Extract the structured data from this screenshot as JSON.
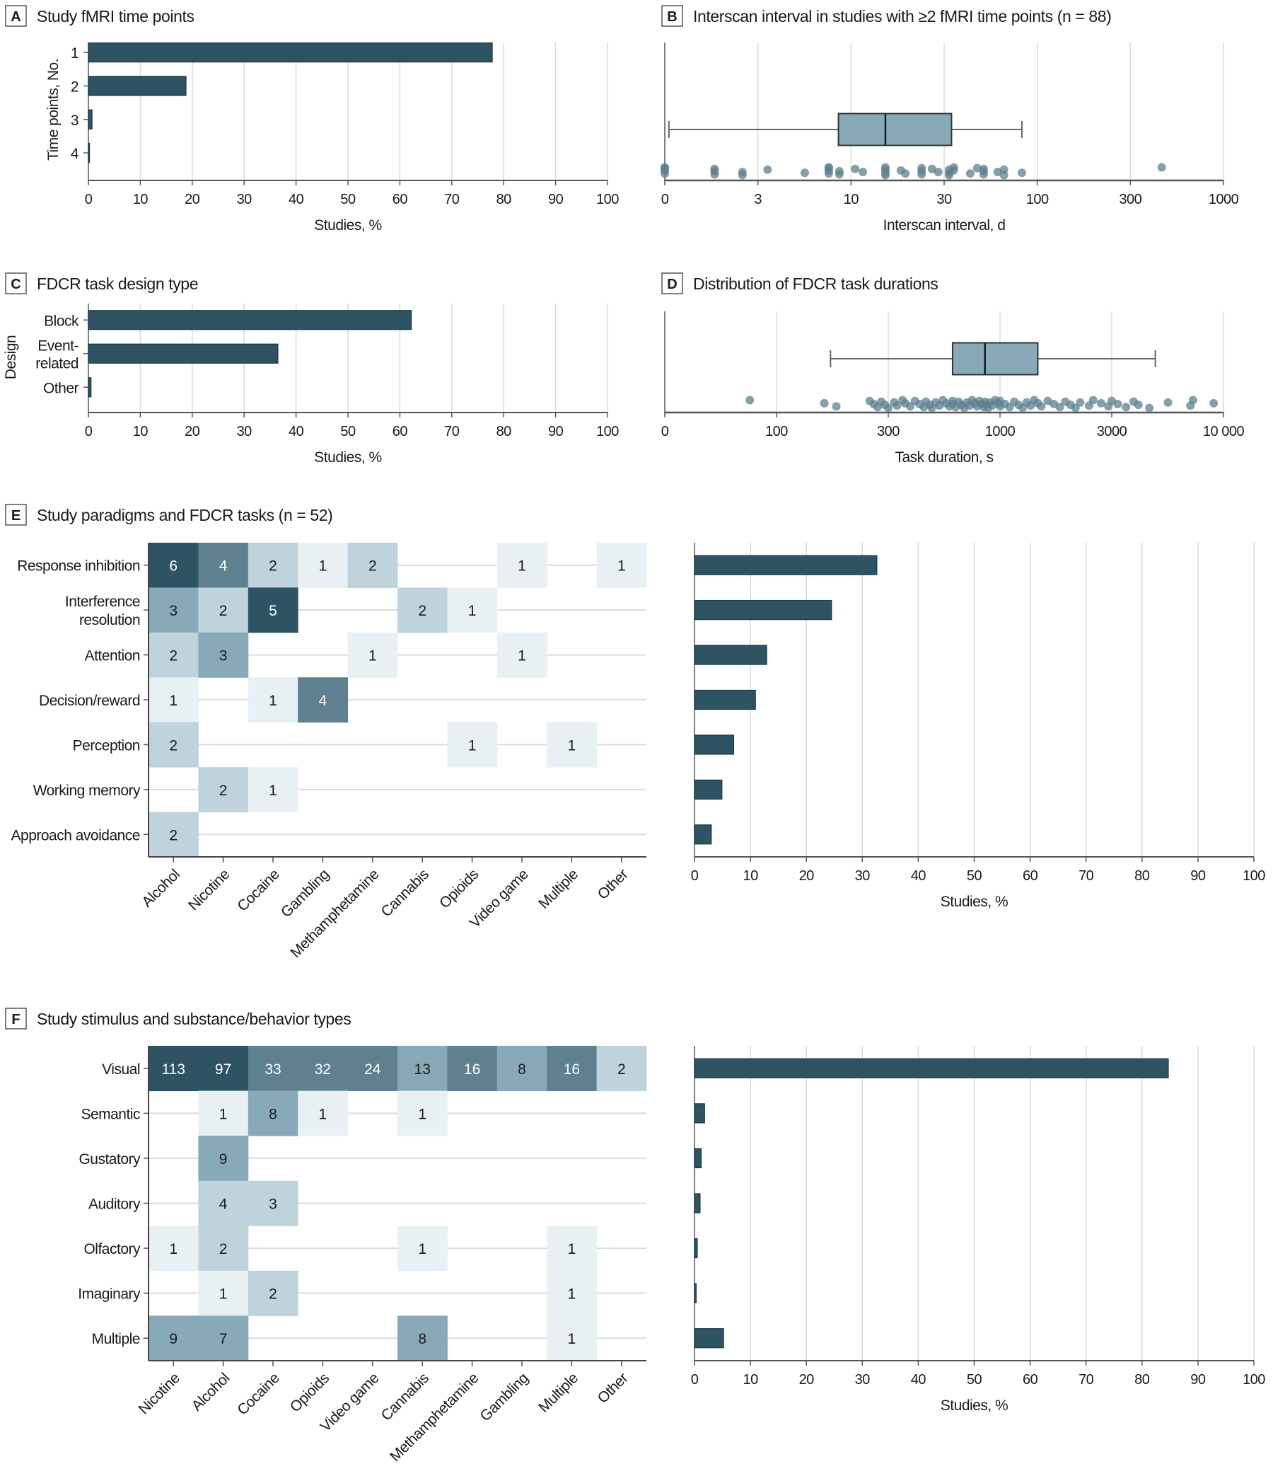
{
  "palette": {
    "bar": "#2e5463",
    "dark": "#2e5463",
    "mid": "#5e808f",
    "midlight": "#88aab8",
    "light": "#bed3dc",
    "lightest": "#e8f0f3",
    "grid": "#d9d9d9",
    "point": "#5e808f",
    "box": "#88aab8"
  },
  "chart_data": [
    {
      "id": "A",
      "type": "bar",
      "letter": "A",
      "title": "Study fMRI time points",
      "ylabel": "Time points, No.",
      "xlabel": "Studies, %",
      "categories": [
        [
          "1"
        ],
        [
          "2"
        ],
        [
          "3"
        ],
        [
          "4"
        ]
      ],
      "values": [
        77.8,
        18.8,
        0.7,
        0.2
      ],
      "xlim": [
        0,
        100
      ],
      "xticks": [
        "0",
        "10",
        "20",
        "30",
        "40",
        "50",
        "60",
        "70",
        "80",
        "90",
        "100"
      ],
      "grid": true
    },
    {
      "id": "B",
      "type": "box",
      "letter": "B",
      "title": "Interscan interval in studies with ≥2 fMRI time points (n = 88)",
      "xlabel": "Interscan interval, d",
      "scale": "log",
      "tick_values": [
        1,
        3,
        10,
        30,
        100,
        300,
        1000
      ],
      "xticks": [
        "0",
        "3",
        "10",
        "30",
        "100",
        "300",
        "1000"
      ],
      "box": {
        "min": 1.05,
        "q1": 8.5,
        "median": 15,
        "q3": 33,
        "max": 82
      },
      "points": [
        1,
        1,
        1,
        1,
        1.8,
        1.8,
        1.8,
        2.5,
        2.5,
        3.4,
        5.5,
        7.5,
        7.5,
        7.5,
        7.5,
        8.6,
        8.6,
        10.5,
        11.5,
        15,
        15,
        15,
        15,
        18,
        19,
        23,
        23,
        23,
        26,
        28,
        32,
        32,
        32,
        34,
        34,
        42,
        46,
        50,
        50,
        50,
        60,
        65,
        65,
        82,
        450
      ]
    },
    {
      "id": "C",
      "type": "bar",
      "letter": "C",
      "title": "FDCR task design type",
      "ylabel": "Design",
      "xlabel": "Studies, %",
      "categories": [
        [
          "Block"
        ],
        [
          "Event-",
          "related"
        ],
        [
          "Other"
        ]
      ],
      "values": [
        62.2,
        36.5,
        0.5
      ],
      "xlim": [
        0,
        100
      ],
      "xticks": [
        "0",
        "10",
        "20",
        "30",
        "40",
        "50",
        "60",
        "70",
        "80",
        "90",
        "100"
      ],
      "grid": true
    },
    {
      "id": "D",
      "type": "box",
      "letter": "D",
      "title": "Distribution of FDCR task durations",
      "xlabel": "Task duration, s",
      "scale": "log",
      "tick_values": [
        30,
        100,
        300,
        1000,
        3000,
        10000
      ],
      "xticks": [
        "0",
        "100",
        "300",
        "1000",
        "3000",
        "10 000"
      ],
      "box": {
        "min": 170,
        "q1": 600,
        "median": 850,
        "q3": 1450,
        "max": 4800
      },
      "points": [
        75,
        160,
        180,
        250,
        260,
        270,
        280,
        290,
        300,
        320,
        330,
        350,
        360,
        380,
        400,
        420,
        440,
        450,
        470,
        480,
        500,
        520,
        540,
        560,
        580,
        600,
        600,
        620,
        640,
        660,
        680,
        700,
        720,
        740,
        760,
        780,
        800,
        820,
        840,
        850,
        860,
        880,
        900,
        920,
        950,
        980,
        1000,
        1000,
        1050,
        1100,
        1150,
        1200,
        1250,
        1300,
        1350,
        1400,
        1450,
        1500,
        1600,
        1700,
        1800,
        1900,
        2000,
        2100,
        2200,
        2400,
        2500,
        2700,
        2900,
        3000,
        3200,
        3500,
        3800,
        4000,
        4500,
        5500,
        7000,
        7200,
        9000
      ]
    },
    {
      "id": "E",
      "type": "heatmap",
      "letter": "E",
      "title": "Study paradigms and FDCR tasks (n = 52)",
      "rows": [
        [
          "Response inhibition"
        ],
        [
          "Interference",
          "resolution"
        ],
        [
          "Attention"
        ],
        [
          "Decision/reward"
        ],
        [
          "Perception"
        ],
        [
          "Working memory"
        ],
        [
          "Approach avoidance"
        ]
      ],
      "columns": [
        "Alcohol",
        "Nicotine",
        "Cocaine",
        "Gambling",
        "Methamphetamine",
        "Cannabis",
        "Opioids",
        "Video game",
        "Multiple",
        "Other"
      ],
      "values": [
        [
          6,
          4,
          2,
          1,
          2,
          null,
          null,
          1,
          null,
          1
        ],
        [
          3,
          2,
          5,
          null,
          null,
          2,
          1,
          null,
          null,
          null
        ],
        [
          2,
          3,
          null,
          null,
          1,
          null,
          null,
          1,
          null,
          null
        ],
        [
          1,
          null,
          1,
          4,
          null,
          null,
          null,
          null,
          null,
          null
        ],
        [
          2,
          null,
          null,
          null,
          null,
          null,
          1,
          null,
          1,
          null
        ],
        [
          null,
          2,
          1,
          null,
          null,
          null,
          null,
          null,
          null,
          null
        ],
        [
          2,
          null,
          null,
          null,
          null,
          null,
          null,
          null,
          null,
          null
        ]
      ]
    },
    {
      "id": "E-bar",
      "type": "bar",
      "xlabel": "Studies, %",
      "categories": [
        "Response inhibition",
        "Interference resolution",
        "Attention",
        "Decision/reward",
        "Perception",
        "Working memory",
        "Approach avoidance"
      ],
      "values": [
        32.6,
        24.5,
        12.9,
        10.9,
        7.0,
        4.9,
        3.0
      ],
      "xlim": [
        0,
        100
      ],
      "xticks": [
        "0",
        "10",
        "20",
        "30",
        "40",
        "50",
        "60",
        "70",
        "80",
        "90",
        "100"
      ],
      "grid": true
    },
    {
      "id": "F",
      "type": "heatmap",
      "letter": "F",
      "title": "Study stimulus and substance/behavior types",
      "rows": [
        [
          "Visual"
        ],
        [
          "Semantic"
        ],
        [
          "Gustatory"
        ],
        [
          "Auditory"
        ],
        [
          "Olfactory"
        ],
        [
          "Imaginary"
        ],
        [
          "Multiple"
        ]
      ],
      "columns": [
        "Nicotine",
        "Alcohol",
        "Cocaine",
        "Opioids",
        "Video game",
        "Cannabis",
        "Methamphetamine",
        "Gambling",
        "Multiple",
        "Other"
      ],
      "values": [
        [
          113,
          97,
          33,
          32,
          24,
          13,
          16,
          8,
          16,
          2
        ],
        [
          null,
          1,
          8,
          1,
          null,
          1,
          null,
          null,
          null,
          null
        ],
        [
          null,
          9,
          null,
          null,
          null,
          null,
          null,
          null,
          null,
          null
        ],
        [
          null,
          4,
          3,
          null,
          null,
          null,
          null,
          null,
          null,
          null
        ],
        [
          1,
          2,
          null,
          null,
          null,
          1,
          null,
          null,
          1,
          null
        ],
        [
          null,
          1,
          2,
          null,
          null,
          null,
          null,
          null,
          1,
          null
        ],
        [
          9,
          7,
          null,
          null,
          null,
          8,
          null,
          null,
          1,
          null
        ]
      ]
    },
    {
      "id": "F-bar",
      "type": "bar",
      "xlabel": "Studies, %",
      "categories": [
        "Visual",
        "Semantic",
        "Gustatory",
        "Auditory",
        "Olfactory",
        "Imaginary",
        "Multiple"
      ],
      "values": [
        84.7,
        1.8,
        1.2,
        1.0,
        0.5,
        0.3,
        5.2
      ],
      "xlim": [
        0,
        100
      ],
      "xticks": [
        "0",
        "10",
        "20",
        "30",
        "40",
        "50",
        "60",
        "70",
        "80",
        "90",
        "100"
      ],
      "grid": true
    }
  ]
}
